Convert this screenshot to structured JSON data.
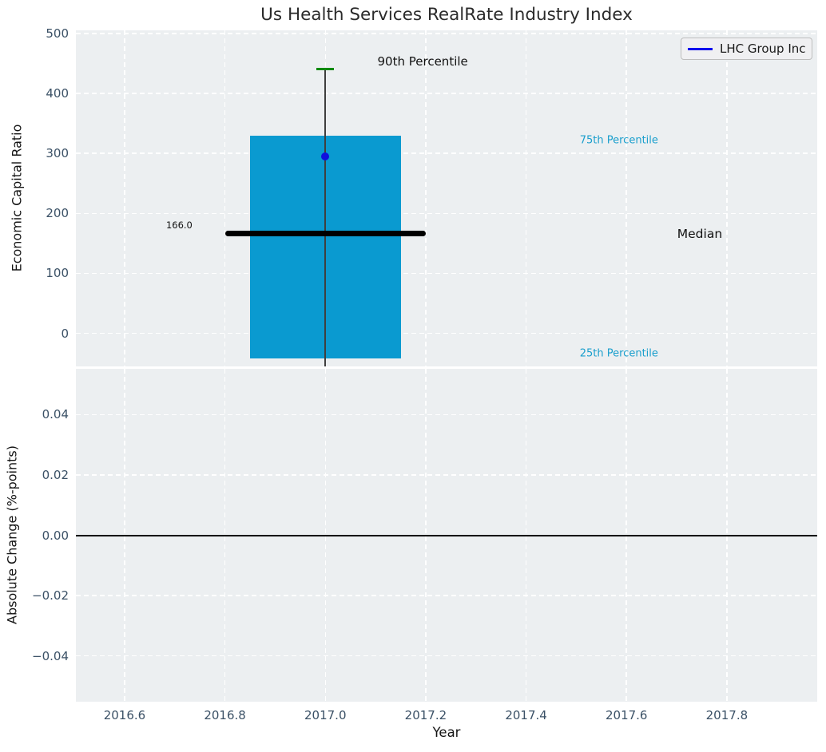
{
  "figure": {
    "title": "Us Health Services RealRate Industry Index"
  },
  "legend": {
    "label": "LHC Group Inc",
    "line_color": "#0c0cee"
  },
  "colors": {
    "axes_background": "#eceff1",
    "grid": "#ffffff",
    "tick_label": "#3b5166",
    "bar_fill": "#0a9ad0",
    "median_line": "#000000",
    "whisker": "#3f3f3f",
    "p90_cap": "#0e8a0e",
    "company_dot": "#1010dd",
    "percentile_text": "#1b9fcd",
    "zero_line": "#000000"
  },
  "chart_data": [
    {
      "type": "box",
      "title": "Us Health Services RealRate Industry Index",
      "ylabel": "Economic Capital Ratio",
      "xlim": [
        2016.503,
        2017.98
      ],
      "ylim": [
        -55,
        505
      ],
      "grid": "white dashed on",
      "legend_position": "upper right",
      "xticks": [
        2016.6,
        2016.8,
        2017.0,
        2017.2,
        2017.4,
        2017.6,
        2017.8
      ],
      "xtick_labels": [
        "",
        "",
        "",
        "",
        "",
        "",
        ""
      ],
      "yticks": [
        0,
        100,
        200,
        300,
        400,
        500
      ],
      "ytick_labels": [
        "0",
        "100",
        "200",
        "300",
        "400",
        "500"
      ],
      "box": {
        "x": 2017.0,
        "box_width": 0.3,
        "median_line_span": 0.4,
        "q25": -42,
        "q75": 330,
        "median": 166.0,
        "median_label": "166.0",
        "p90": 440,
        "whisker_low_clipped": true
      },
      "series": [
        {
          "name": "LHC Group Inc",
          "x": [
            2017.0
          ],
          "y": [
            295
          ],
          "marker": "dot"
        }
      ],
      "annotations": [
        {
          "text": "90th Percentile",
          "x": 2017.194,
          "y": 453,
          "style": "black",
          "size": 15
        },
        {
          "text": "75th Percentile",
          "x": 2017.585,
          "y": 321,
          "style": "cyan",
          "size": 13
        },
        {
          "text": "Median",
          "x": 2017.746,
          "y": 166,
          "style": "black",
          "size": 15.5
        },
        {
          "text": "25th Percentile",
          "x": 2017.585,
          "y": -34,
          "style": "cyan",
          "size": 13
        },
        {
          "text": "166.0",
          "x": 2016.709,
          "y": 181,
          "style": "black",
          "size": 11.5
        }
      ]
    },
    {
      "type": "line",
      "ylabel": "Absolute Change (%-points)",
      "xlabel": "Year",
      "xlim": [
        2016.503,
        2017.98
      ],
      "ylim": [
        -0.0552,
        0.0552
      ],
      "grid": "white dashed on",
      "xticks": [
        2016.6,
        2016.8,
        2017.0,
        2017.2,
        2017.4,
        2017.6,
        2017.8
      ],
      "xtick_labels": [
        "2016.6",
        "2016.8",
        "2017.0",
        "2017.2",
        "2017.4",
        "2017.6",
        "2017.8"
      ],
      "yticks": [
        0.04,
        0.02,
        0.0,
        -0.02,
        -0.04
      ],
      "ytick_labels": [
        "0.04",
        "0.02",
        "0.00",
        "−0.02",
        "−0.04"
      ],
      "hline": 0.0,
      "series": []
    }
  ]
}
